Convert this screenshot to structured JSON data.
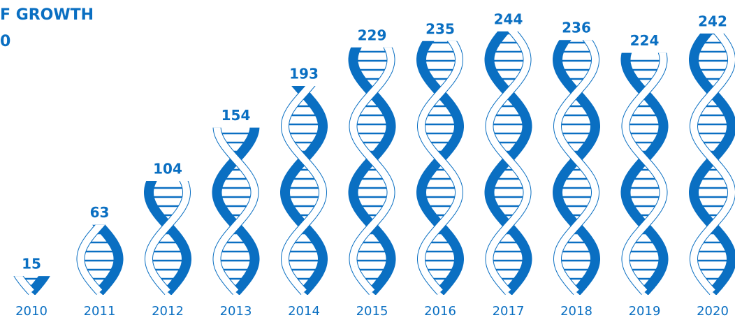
{
  "chart_data": {
    "type": "helix-bar",
    "title": [
      "F GROWTH",
      "0"
    ],
    "categories": [
      "2010",
      "2011",
      "2012",
      "2013",
      "2014",
      "2015",
      "2016",
      "2017",
      "2018",
      "2019",
      "2020"
    ],
    "values": [
      15,
      63,
      104,
      154,
      193,
      229,
      235,
      244,
      236,
      224,
      242
    ],
    "color": "#0a6fc2"
  }
}
